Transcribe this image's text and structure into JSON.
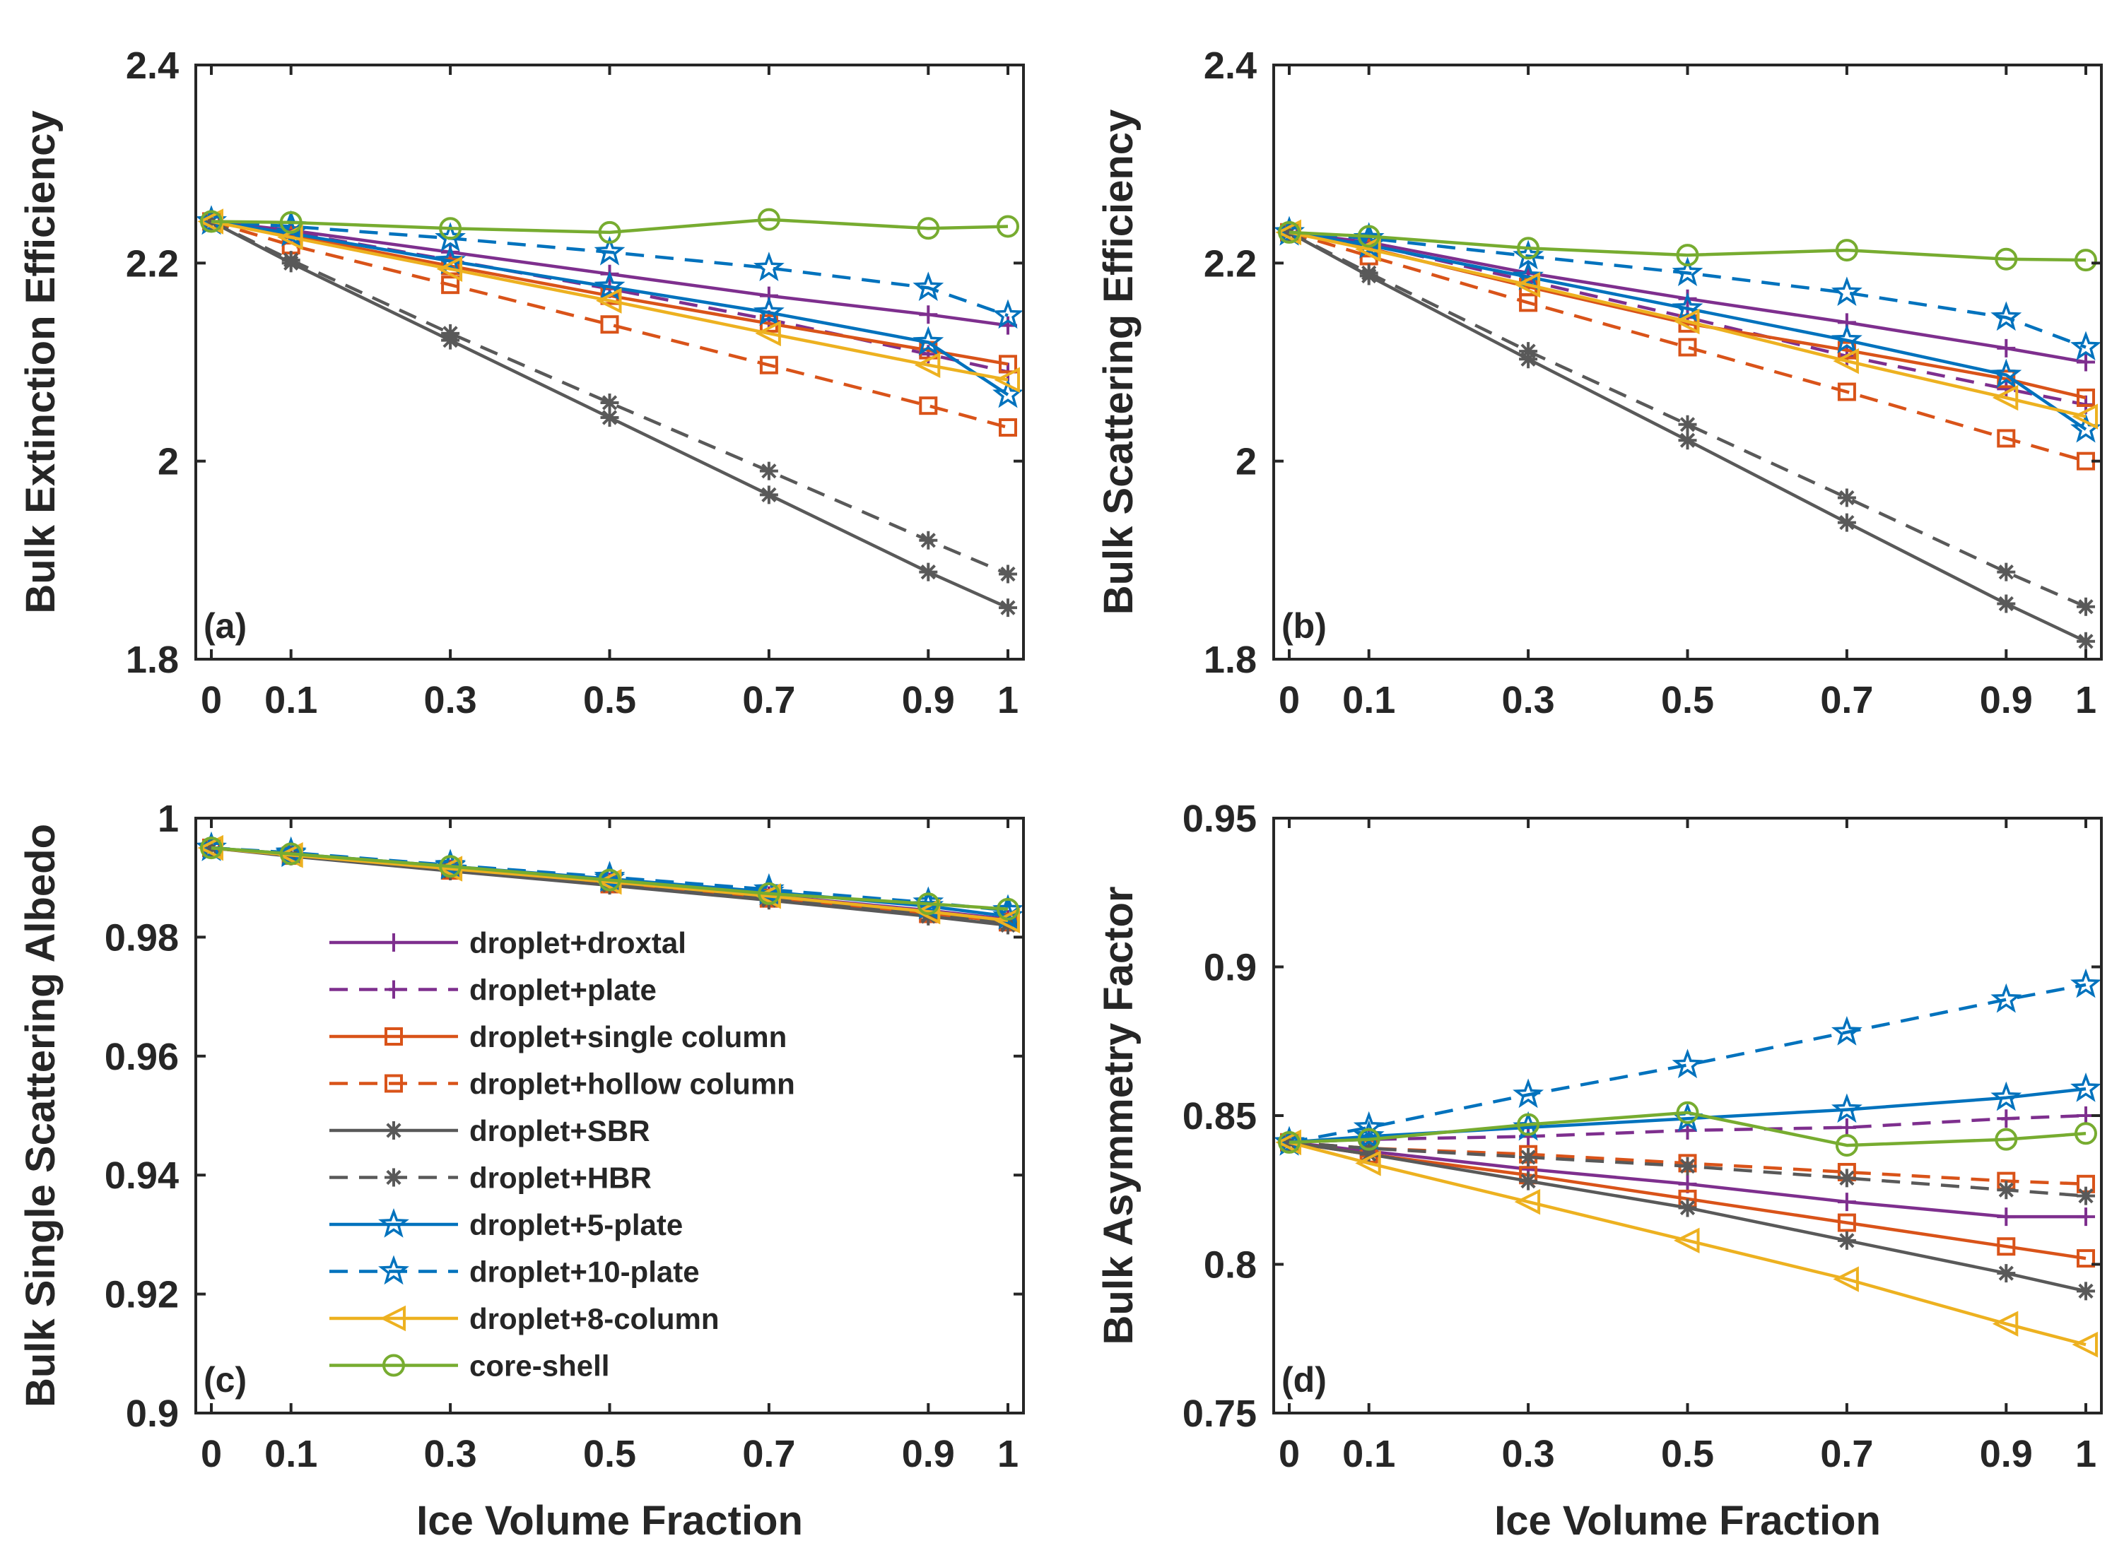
{
  "chart_data": {
    "type": "line",
    "x": [
      0,
      0.1,
      0.3,
      0.5,
      0.7,
      0.9,
      1
    ],
    "legend_placement": "inside panel (c), center",
    "series_styles": [
      {
        "name": "droplet+droxtal",
        "color": "#7E2F8E",
        "dash": "solid",
        "marker": "plus"
      },
      {
        "name": "droplet+plate",
        "color": "#7E2F8E",
        "dash": "dashed",
        "marker": "plus"
      },
      {
        "name": "droplet+single column",
        "color": "#D95319",
        "dash": "solid",
        "marker": "square"
      },
      {
        "name": "droplet+hollow column",
        "color": "#D95319",
        "dash": "dashed",
        "marker": "square"
      },
      {
        "name": "droplet+SBR",
        "color": "#595959",
        "dash": "solid",
        "marker": "asterisk"
      },
      {
        "name": "droplet+HBR",
        "color": "#595959",
        "dash": "dashed",
        "marker": "asterisk"
      },
      {
        "name": "droplet+5-plate",
        "color": "#0072BD",
        "dash": "solid",
        "marker": "star"
      },
      {
        "name": "droplet+10-plate",
        "color": "#0072BD",
        "dash": "dashed",
        "marker": "star"
      },
      {
        "name": "droplet+8-column",
        "color": "#EDB120",
        "dash": "solid",
        "marker": "triangle-left"
      },
      {
        "name": "core-shell",
        "color": "#77AC30",
        "dash": "solid",
        "marker": "circle"
      }
    ],
    "panels": [
      {
        "label": "(a)",
        "xlabel": "",
        "ylabel": "Bulk Extinction Efficiency",
        "ylim": [
          1.8,
          2.4
        ],
        "yticks": [
          1.8,
          2,
          2.2,
          2.4
        ],
        "yticklabels": [
          "1.8",
          "2",
          "2.2",
          "2.4"
        ],
        "xticklabels": [
          "0",
          "0.1",
          "0.3",
          "0.5",
          "0.7",
          "0.9",
          "1"
        ],
        "series": [
          {
            "name": "droplet+droxtal",
            "values": [
              2.242,
              2.233,
              2.211,
              2.189,
              2.167,
              2.148,
              2.137
            ]
          },
          {
            "name": "droplet+plate",
            "values": [
              2.242,
              2.231,
              2.203,
              2.174,
              2.143,
              2.108,
              2.09
            ]
          },
          {
            "name": "droplet+single column",
            "values": [
              2.242,
              2.228,
              2.197,
              2.167,
              2.139,
              2.112,
              2.098
            ]
          },
          {
            "name": "droplet+hollow column",
            "values": [
              2.242,
              2.218,
              2.178,
              2.138,
              2.097,
              2.056,
              2.034
            ]
          },
          {
            "name": "droplet+SBR",
            "values": [
              2.242,
              2.2,
              2.122,
              2.044,
              1.966,
              1.888,
              1.852
            ]
          },
          {
            "name": "droplet+HBR",
            "values": [
              2.242,
              2.203,
              2.129,
              2.059,
              1.99,
              1.92,
              1.886
            ]
          },
          {
            "name": "droplet+5-plate",
            "values": [
              2.242,
              2.23,
              2.202,
              2.176,
              2.15,
              2.12,
              2.067
            ]
          },
          {
            "name": "droplet+10-plate",
            "values": [
              2.242,
              2.237,
              2.225,
              2.211,
              2.195,
              2.175,
              2.147
            ]
          },
          {
            "name": "droplet+8-column",
            "values": [
              2.242,
              2.226,
              2.194,
              2.162,
              2.129,
              2.097,
              2.082
            ]
          },
          {
            "name": "core-shell",
            "values": [
              2.242,
              2.241,
              2.235,
              2.231,
              2.244,
              2.235,
              2.237
            ]
          }
        ]
      },
      {
        "label": "(b)",
        "xlabel": "",
        "ylabel": "Bulk Scattering Efficiency",
        "ylim": [
          1.8,
          2.4
        ],
        "yticks": [
          1.8,
          2,
          2.2,
          2.4
        ],
        "yticklabels": [
          "1.8",
          "2",
          "2.2",
          "2.4"
        ],
        "xticklabels": [
          "0",
          "0.1",
          "0.3",
          "0.5",
          "0.7",
          "0.9",
          "1"
        ],
        "series": [
          {
            "name": "droplet+droxtal",
            "values": [
              2.231,
              2.221,
              2.19,
              2.164,
              2.14,
              2.114,
              2.1
            ]
          },
          {
            "name": "droplet+plate",
            "values": [
              2.231,
              2.219,
              2.182,
              2.145,
              2.106,
              2.073,
              2.057
            ]
          },
          {
            "name": "droplet+single column",
            "values": [
              2.231,
              2.215,
              2.176,
              2.139,
              2.112,
              2.083,
              2.064
            ]
          },
          {
            "name": "droplet+hollow column",
            "values": [
              2.231,
              2.207,
              2.16,
              2.115,
              2.07,
              2.023,
              2.0
            ]
          },
          {
            "name": "droplet+SBR",
            "values": [
              2.231,
              2.187,
              2.103,
              2.021,
              1.938,
              1.856,
              1.818
            ]
          },
          {
            "name": "droplet+HBR",
            "values": [
              2.231,
              2.19,
              2.111,
              2.037,
              1.963,
              1.888,
              1.853
            ]
          },
          {
            "name": "droplet+5-plate",
            "values": [
              2.231,
              2.218,
              2.186,
              2.154,
              2.122,
              2.087,
              2.032
            ]
          },
          {
            "name": "droplet+10-plate",
            "values": [
              2.231,
              2.225,
              2.207,
              2.19,
              2.17,
              2.145,
              2.115
            ]
          },
          {
            "name": "droplet+8-column",
            "values": [
              2.231,
              2.214,
              2.178,
              2.141,
              2.101,
              2.064,
              2.045
            ]
          },
          {
            "name": "core-shell",
            "values": [
              2.231,
              2.227,
              2.215,
              2.208,
              2.213,
              2.204,
              2.203
            ]
          }
        ]
      },
      {
        "label": "(c)",
        "xlabel": "Ice Volume Fraction",
        "ylabel": "Bulk Single Scattering Albedo",
        "ylim": [
          0.9,
          1
        ],
        "yticks": [
          0.9,
          0.92,
          0.94,
          0.96,
          0.98,
          1
        ],
        "yticklabels": [
          "0.9",
          "0.92",
          "0.94",
          "0.96",
          "0.98",
          "1"
        ],
        "xticklabels": [
          "0",
          "0.1",
          "0.3",
          "0.5",
          "0.7",
          "0.9",
          "1"
        ],
        "series": [
          {
            "name": "droplet+droxtal",
            "values": [
              0.995,
              0.9938,
              0.9915,
              0.9893,
              0.987,
              0.9845,
              0.983
            ]
          },
          {
            "name": "droplet+plate",
            "values": [
              0.995,
              0.9938,
              0.9913,
              0.989,
              0.9866,
              0.984,
              0.9828
            ]
          },
          {
            "name": "droplet+single column",
            "values": [
              0.995,
              0.9937,
              0.9913,
              0.989,
              0.9866,
              0.984,
              0.9826
            ]
          },
          {
            "name": "droplet+hollow column",
            "values": [
              0.995,
              0.9937,
              0.9912,
              0.9889,
              0.9865,
              0.9839,
              0.9825
            ]
          },
          {
            "name": "droplet+SBR",
            "values": [
              0.995,
              0.9936,
              0.9911,
              0.9887,
              0.9862,
              0.9835,
              0.982
            ]
          },
          {
            "name": "droplet+HBR",
            "values": [
              0.995,
              0.9937,
              0.9912,
              0.9889,
              0.9864,
              0.9838,
              0.9823
            ]
          },
          {
            "name": "droplet+5-plate",
            "values": [
              0.995,
              0.994,
              0.9919,
              0.9898,
              0.9876,
              0.9852,
              0.9835
            ]
          },
          {
            "name": "droplet+10-plate",
            "values": [
              0.995,
              0.9942,
              0.9921,
              0.9901,
              0.988,
              0.9858,
              0.9845
            ]
          },
          {
            "name": "droplet+8-column",
            "values": [
              0.995,
              0.9938,
              0.9915,
              0.9893,
              0.9869,
              0.9843,
              0.9828
            ]
          },
          {
            "name": "core-shell",
            "values": [
              0.995,
              0.994,
              0.9919,
              0.9896,
              0.9873,
              0.9856,
              0.9847
            ]
          }
        ]
      },
      {
        "label": "(d)",
        "xlabel": "Ice Volume Fraction",
        "ylabel": "Bulk Asymmetry Factor",
        "ylim": [
          0.75,
          0.95
        ],
        "yticks": [
          0.75,
          0.8,
          0.85,
          0.9,
          0.95
        ],
        "yticklabels": [
          "0.75",
          "0.8",
          "0.85",
          "0.9",
          "0.95"
        ],
        "xticklabels": [
          "0",
          "0.1",
          "0.3",
          "0.5",
          "0.7",
          "0.9",
          "1"
        ],
        "series": [
          {
            "name": "droplet+droxtal",
            "values": [
              0.841,
              0.838,
              0.832,
              0.827,
              0.821,
              0.816,
              0.816
            ]
          },
          {
            "name": "droplet+plate",
            "values": [
              0.841,
              0.842,
              0.843,
              0.845,
              0.846,
              0.849,
              0.85
            ]
          },
          {
            "name": "droplet+single column",
            "values": [
              0.841,
              0.837,
              0.83,
              0.822,
              0.814,
              0.806,
              0.802
            ]
          },
          {
            "name": "droplet+hollow column",
            "values": [
              0.841,
              0.839,
              0.837,
              0.834,
              0.831,
              0.828,
              0.827
            ]
          },
          {
            "name": "droplet+SBR",
            "values": [
              0.841,
              0.837,
              0.828,
              0.819,
              0.808,
              0.797,
              0.791
            ]
          },
          {
            "name": "droplet+HBR",
            "values": [
              0.841,
              0.839,
              0.836,
              0.833,
              0.829,
              0.825,
              0.823
            ]
          },
          {
            "name": "droplet+5-plate",
            "values": [
              0.841,
              0.843,
              0.846,
              0.849,
              0.852,
              0.856,
              0.859
            ]
          },
          {
            "name": "droplet+10-plate",
            "values": [
              0.841,
              0.846,
              0.857,
              0.867,
              0.878,
              0.889,
              0.894
            ]
          },
          {
            "name": "droplet+8-column",
            "values": [
              0.841,
              0.834,
              0.821,
              0.808,
              0.795,
              0.78,
              0.773
            ]
          },
          {
            "name": "core-shell",
            "values": [
              0.841,
              0.842,
              0.847,
              0.851,
              0.84,
              0.842,
              0.844
            ]
          }
        ]
      }
    ]
  }
}
